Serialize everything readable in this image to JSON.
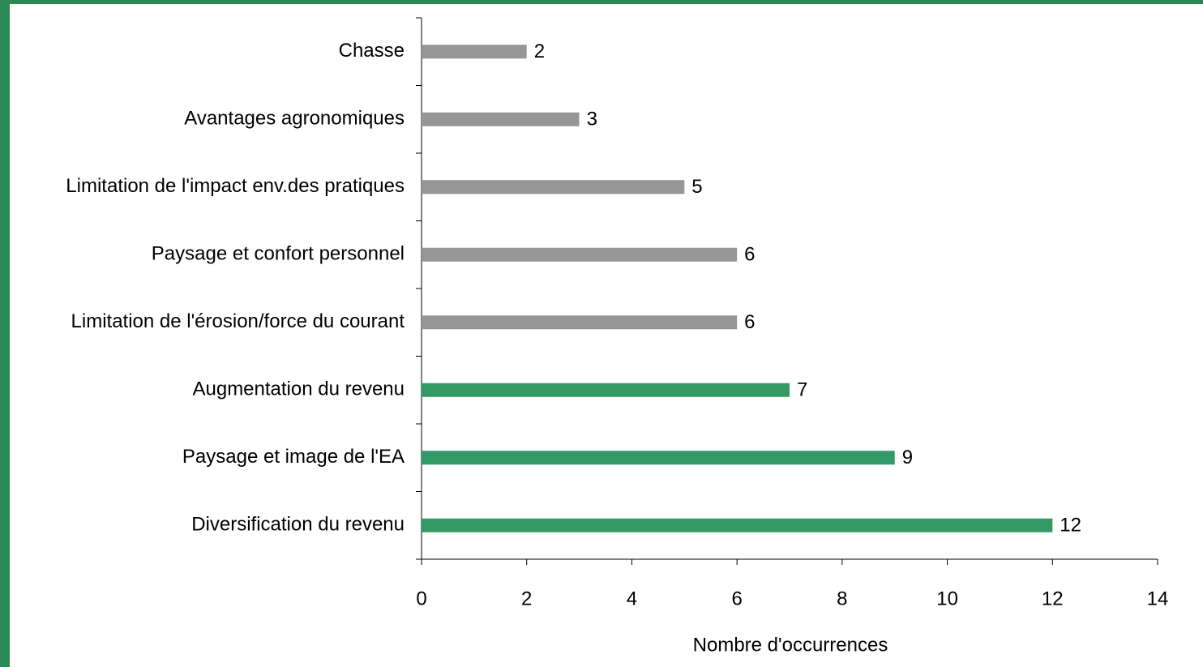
{
  "chart_data": {
    "type": "bar",
    "orientation": "horizontal",
    "categories": [
      "Chasse",
      "Avantages agronomiques",
      "Limitation de l'impact env.des pratiques",
      "Paysage et confort personnel",
      "Limitation de l'érosion/force du courant",
      "Augmentation du revenu",
      "Paysage et image de l'EA",
      "Diversification du revenu"
    ],
    "values": [
      2,
      3,
      5,
      6,
      6,
      7,
      9,
      12
    ],
    "colors": [
      "#969696",
      "#969696",
      "#969696",
      "#969696",
      "#969696",
      "#339966",
      "#339966",
      "#339966"
    ],
    "xlabel": "Nombre d'occurrences",
    "xlim": [
      0,
      14
    ],
    "xticks": [
      0,
      2,
      4,
      6,
      8,
      10,
      12,
      14
    ],
    "grid": false
  }
}
